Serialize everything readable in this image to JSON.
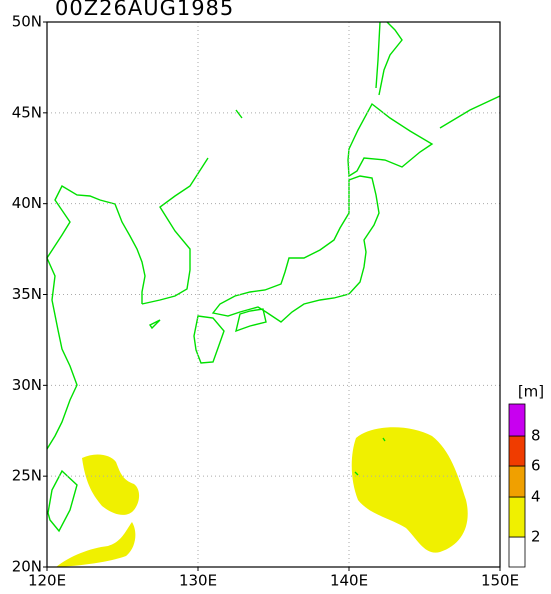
{
  "title": "00Z26AUG1985",
  "map": {
    "lon_ticks": [
      {
        "value": 120,
        "label": "120E"
      },
      {
        "value": 130,
        "label": "130E"
      },
      {
        "value": 140,
        "label": "140E"
      },
      {
        "value": 150,
        "label": "150E"
      }
    ],
    "lat_ticks": [
      {
        "value": 20,
        "label": "20N"
      },
      {
        "value": 25,
        "label": "25N"
      },
      {
        "value": 30,
        "label": "30N"
      },
      {
        "value": 35,
        "label": "35N"
      },
      {
        "value": 40,
        "label": "40N"
      },
      {
        "value": 45,
        "label": "45N"
      },
      {
        "value": 50,
        "label": "50N"
      }
    ],
    "lonlim": [
      120,
      150
    ],
    "latlim": [
      20,
      50
    ],
    "grid": true
  },
  "colorbar": {
    "unit": "[m]",
    "levels": [
      2,
      4,
      6,
      8
    ],
    "colors": [
      "#ffffff",
      "#f0f000",
      "#f0a000",
      "#f03c00",
      "#c800f0"
    ]
  }
}
